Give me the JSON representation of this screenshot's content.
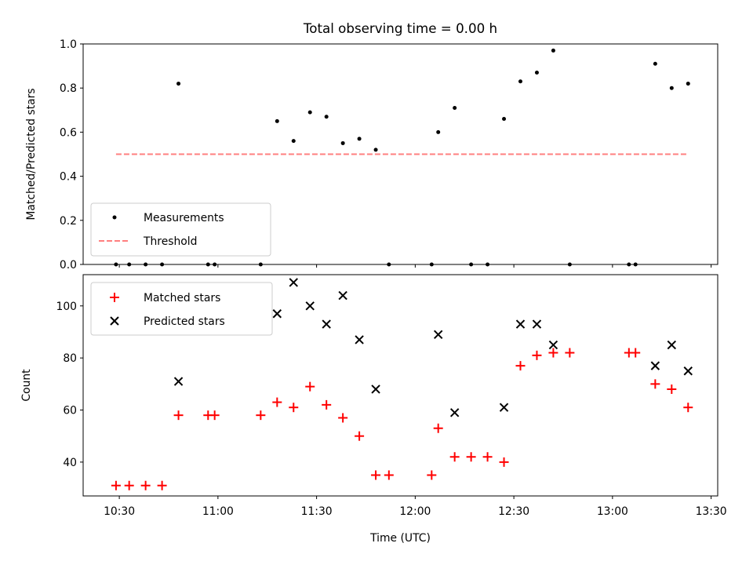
{
  "chart_data": [
    {
      "type": "scatter",
      "title": "Total observing time = 0.00 h",
      "ylabel": "Matched/Predicted stars",
      "xlabel": "",
      "ylim": [
        0,
        1.0
      ],
      "yticks": [
        0.0,
        0.2,
        0.4,
        0.6,
        0.8,
        1.0
      ],
      "ytick_labels": [
        "0.0",
        "0.2",
        "0.4",
        "0.6",
        "0.8",
        "1.0"
      ],
      "legend_position": "lower-left",
      "series": [
        {
          "name": "Measurements",
          "marker": "dot",
          "color": "#000000",
          "points": [
            [
              "10:29",
              0.0
            ],
            [
              "10:33",
              0.0
            ],
            [
              "10:38",
              0.0
            ],
            [
              "10:43",
              0.0
            ],
            [
              "10:48",
              0.82
            ],
            [
              "10:57",
              0.0
            ],
            [
              "10:59",
              0.0
            ],
            [
              "11:13",
              0.0
            ],
            [
              "11:18",
              0.65
            ],
            [
              "11:23",
              0.56
            ],
            [
              "11:28",
              0.69
            ],
            [
              "11:33",
              0.67
            ],
            [
              "11:38",
              0.55
            ],
            [
              "11:43",
              0.57
            ],
            [
              "11:48",
              0.52
            ],
            [
              "11:52",
              0.0
            ],
            [
              "12:05",
              0.0
            ],
            [
              "12:07",
              0.6
            ],
            [
              "12:12",
              0.71
            ],
            [
              "12:17",
              0.0
            ],
            [
              "12:22",
              0.0
            ],
            [
              "12:27",
              0.66
            ],
            [
              "12:32",
              0.83
            ],
            [
              "12:37",
              0.87
            ],
            [
              "12:42",
              0.97
            ],
            [
              "12:47",
              0.0
            ],
            [
              "13:05",
              0.0
            ],
            [
              "13:07",
              0.0
            ],
            [
              "13:13",
              0.91
            ],
            [
              "13:18",
              0.8
            ],
            [
              "13:23",
              0.82
            ]
          ]
        },
        {
          "name": "Threshold",
          "marker": "dashed-line",
          "color": "#ff7f7f",
          "points": [
            [
              "10:29",
              0.5
            ],
            [
              "13:23",
              0.5
            ]
          ]
        }
      ]
    },
    {
      "type": "scatter",
      "title": "",
      "ylabel": "Count",
      "xlabel": "Time (UTC)",
      "ylim": [
        27,
        112
      ],
      "yticks": [
        40,
        60,
        80,
        100
      ],
      "ytick_labels": [
        "40",
        "60",
        "80",
        "100"
      ],
      "xticks": [
        "10:30",
        "11:00",
        "11:30",
        "12:00",
        "12:30",
        "13:00",
        "13:30"
      ],
      "xlim": [
        "10:19",
        "13:32"
      ],
      "legend_position": "upper-left",
      "series": [
        {
          "name": "Matched stars",
          "marker": "plus",
          "color": "#ff0000",
          "points": [
            [
              "10:29",
              31
            ],
            [
              "10:33",
              31
            ],
            [
              "10:38",
              31
            ],
            [
              "10:43",
              31
            ],
            [
              "10:48",
              58
            ],
            [
              "10:57",
              58
            ],
            [
              "10:59",
              58
            ],
            [
              "11:13",
              58
            ],
            [
              "11:18",
              63
            ],
            [
              "11:23",
              61
            ],
            [
              "11:28",
              69
            ],
            [
              "11:33",
              62
            ],
            [
              "11:38",
              57
            ],
            [
              "11:43",
              50
            ],
            [
              "11:48",
              35
            ],
            [
              "11:52",
              35
            ],
            [
              "12:05",
              35
            ],
            [
              "12:07",
              53
            ],
            [
              "12:12",
              42
            ],
            [
              "12:17",
              42
            ],
            [
              "12:22",
              42
            ],
            [
              "12:27",
              40
            ],
            [
              "12:32",
              77
            ],
            [
              "12:37",
              81
            ],
            [
              "12:42",
              82
            ],
            [
              "12:47",
              82
            ],
            [
              "13:05",
              82
            ],
            [
              "13:07",
              82
            ],
            [
              "13:13",
              70
            ],
            [
              "13:18",
              68
            ],
            [
              "13:23",
              61
            ]
          ]
        },
        {
          "name": "Predicted stars",
          "marker": "x",
          "color": "#000000",
          "points": [
            [
              "10:48",
              71
            ],
            [
              "11:18",
              97
            ],
            [
              "11:23",
              109
            ],
            [
              "11:28",
              100
            ],
            [
              "11:33",
              93
            ],
            [
              "11:38",
              104
            ],
            [
              "11:43",
              87
            ],
            [
              "11:48",
              68
            ],
            [
              "12:07",
              89
            ],
            [
              "12:12",
              59
            ],
            [
              "12:27",
              61
            ],
            [
              "12:32",
              93
            ],
            [
              "12:37",
              93
            ],
            [
              "12:42",
              85
            ],
            [
              "13:13",
              77
            ],
            [
              "13:18",
              85
            ],
            [
              "13:23",
              75
            ]
          ]
        }
      ]
    }
  ]
}
